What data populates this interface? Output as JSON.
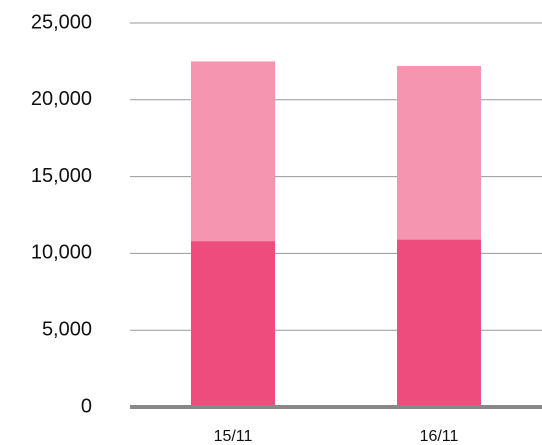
{
  "chart_data": {
    "type": "stacked_bar",
    "categories": [
      "15/11",
      "16/11"
    ],
    "series": [
      {
        "color": "#ee4c7c",
        "values": [
          10800,
          10900
        ]
      },
      {
        "color": "#f595b0",
        "values": [
          11700,
          11300
        ]
      }
    ],
    "ylim": [
      0,
      25000
    ],
    "yticks": [
      0,
      {
        "value": 5000,
        "label": "5,000"
      },
      {
        "value": 10000,
        "label": "10,000"
      },
      {
        "value": 15000,
        "label": "15,000"
      },
      {
        "value": 20000,
        "label": "20,000"
      },
      {
        "value": 25000,
        "label": "25,000"
      }
    ],
    "grid": true
  }
}
